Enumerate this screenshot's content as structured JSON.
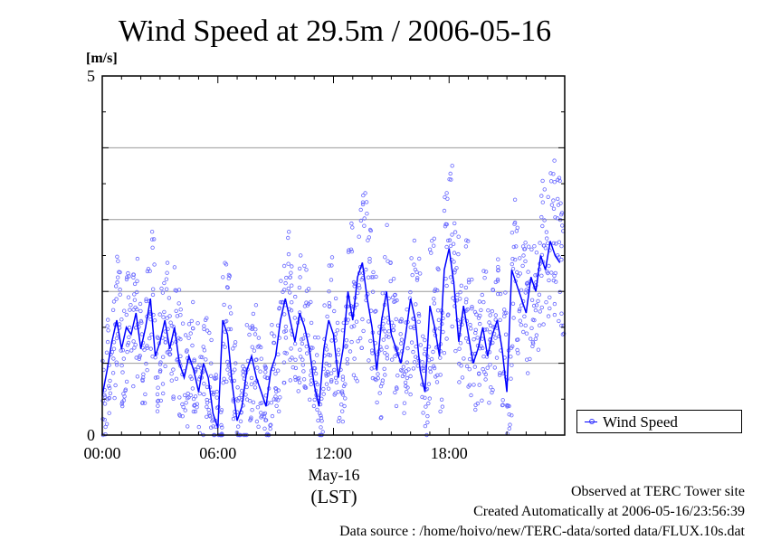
{
  "chart_data": {
    "type": "scatter",
    "title": "Wind Speed at 29.5m / 2006-05-16",
    "ylabel": "[m/s]",
    "y_ticks": [
      "0",
      "5"
    ],
    "ylim": [
      0,
      5
    ],
    "x_ticks": [
      "00:00",
      "06:00",
      "12:00",
      "18:00"
    ],
    "x_tick_hours": [
      0,
      6,
      12,
      18
    ],
    "xlim_hours": [
      0,
      24
    ],
    "x_date_label": "May-16",
    "x_unit_label": "(LST)",
    "grid": true,
    "legend_position": "right",
    "series": [
      {
        "name": "Wind Speed",
        "line_color": "#0000ff",
        "point_color": "#6666ff",
        "x_hours": [
          0.0,
          0.25,
          0.5,
          0.75,
          1.0,
          1.25,
          1.5,
          1.75,
          2.0,
          2.25,
          2.5,
          2.75,
          3.0,
          3.25,
          3.5,
          3.75,
          4.0,
          4.25,
          4.5,
          4.75,
          5.0,
          5.25,
          5.5,
          5.75,
          6.0,
          6.25,
          6.5,
          6.75,
          7.0,
          7.25,
          7.5,
          7.75,
          8.0,
          8.25,
          8.5,
          8.75,
          9.0,
          9.25,
          9.5,
          9.75,
          10.0,
          10.25,
          10.5,
          10.75,
          11.0,
          11.25,
          11.5,
          11.75,
          12.0,
          12.25,
          12.5,
          12.75,
          13.0,
          13.25,
          13.5,
          13.75,
          14.0,
          14.25,
          14.5,
          14.75,
          15.0,
          15.25,
          15.5,
          15.75,
          16.0,
          16.25,
          16.5,
          16.75,
          17.0,
          17.25,
          17.5,
          17.75,
          18.0,
          18.25,
          18.5,
          18.75,
          19.0,
          19.25,
          19.5,
          19.75,
          20.0,
          20.25,
          20.5,
          20.75,
          21.0,
          21.25,
          21.5,
          21.75,
          22.0,
          22.25,
          22.5,
          22.75,
          23.0,
          23.25,
          23.5,
          23.75
        ],
        "values": [
          0.55,
          0.9,
          1.3,
          1.6,
          1.2,
          1.5,
          1.4,
          1.7,
          1.2,
          1.5,
          1.9,
          1.1,
          1.3,
          1.6,
          1.2,
          1.5,
          1.0,
          0.8,
          1.1,
          0.9,
          0.6,
          1.0,
          0.8,
          0.3,
          0.1,
          1.6,
          1.4,
          0.7,
          0.2,
          0.4,
          0.9,
          1.1,
          0.8,
          0.6,
          0.4,
          0.9,
          1.1,
          1.6,
          1.9,
          1.6,
          1.3,
          1.7,
          1.5,
          1.2,
          0.7,
          0.4,
          1.2,
          1.6,
          1.4,
          0.8,
          1.2,
          2.0,
          1.6,
          2.2,
          2.4,
          1.9,
          1.5,
          0.9,
          1.6,
          2.0,
          1.4,
          1.2,
          1.0,
          1.4,
          1.9,
          1.6,
          0.9,
          0.6,
          1.8,
          1.5,
          1.1,
          2.3,
          2.6,
          2.1,
          1.3,
          1.8,
          1.4,
          1.0,
          1.2,
          1.5,
          1.1,
          1.4,
          1.6,
          1.2,
          0.6,
          2.3,
          2.1,
          1.9,
          1.7,
          2.2,
          2.0,
          2.5,
          2.3,
          2.7,
          2.5,
          2.4
        ]
      }
    ]
  },
  "footer": {
    "line1": "Observed at TERC Tower site",
    "line2": "Created Automatically at 2006-05-16/23:56:39",
    "line3": "Data source : /home/hoivo/new/TERC-data/sorted  data/FLUX.10s.dat"
  }
}
